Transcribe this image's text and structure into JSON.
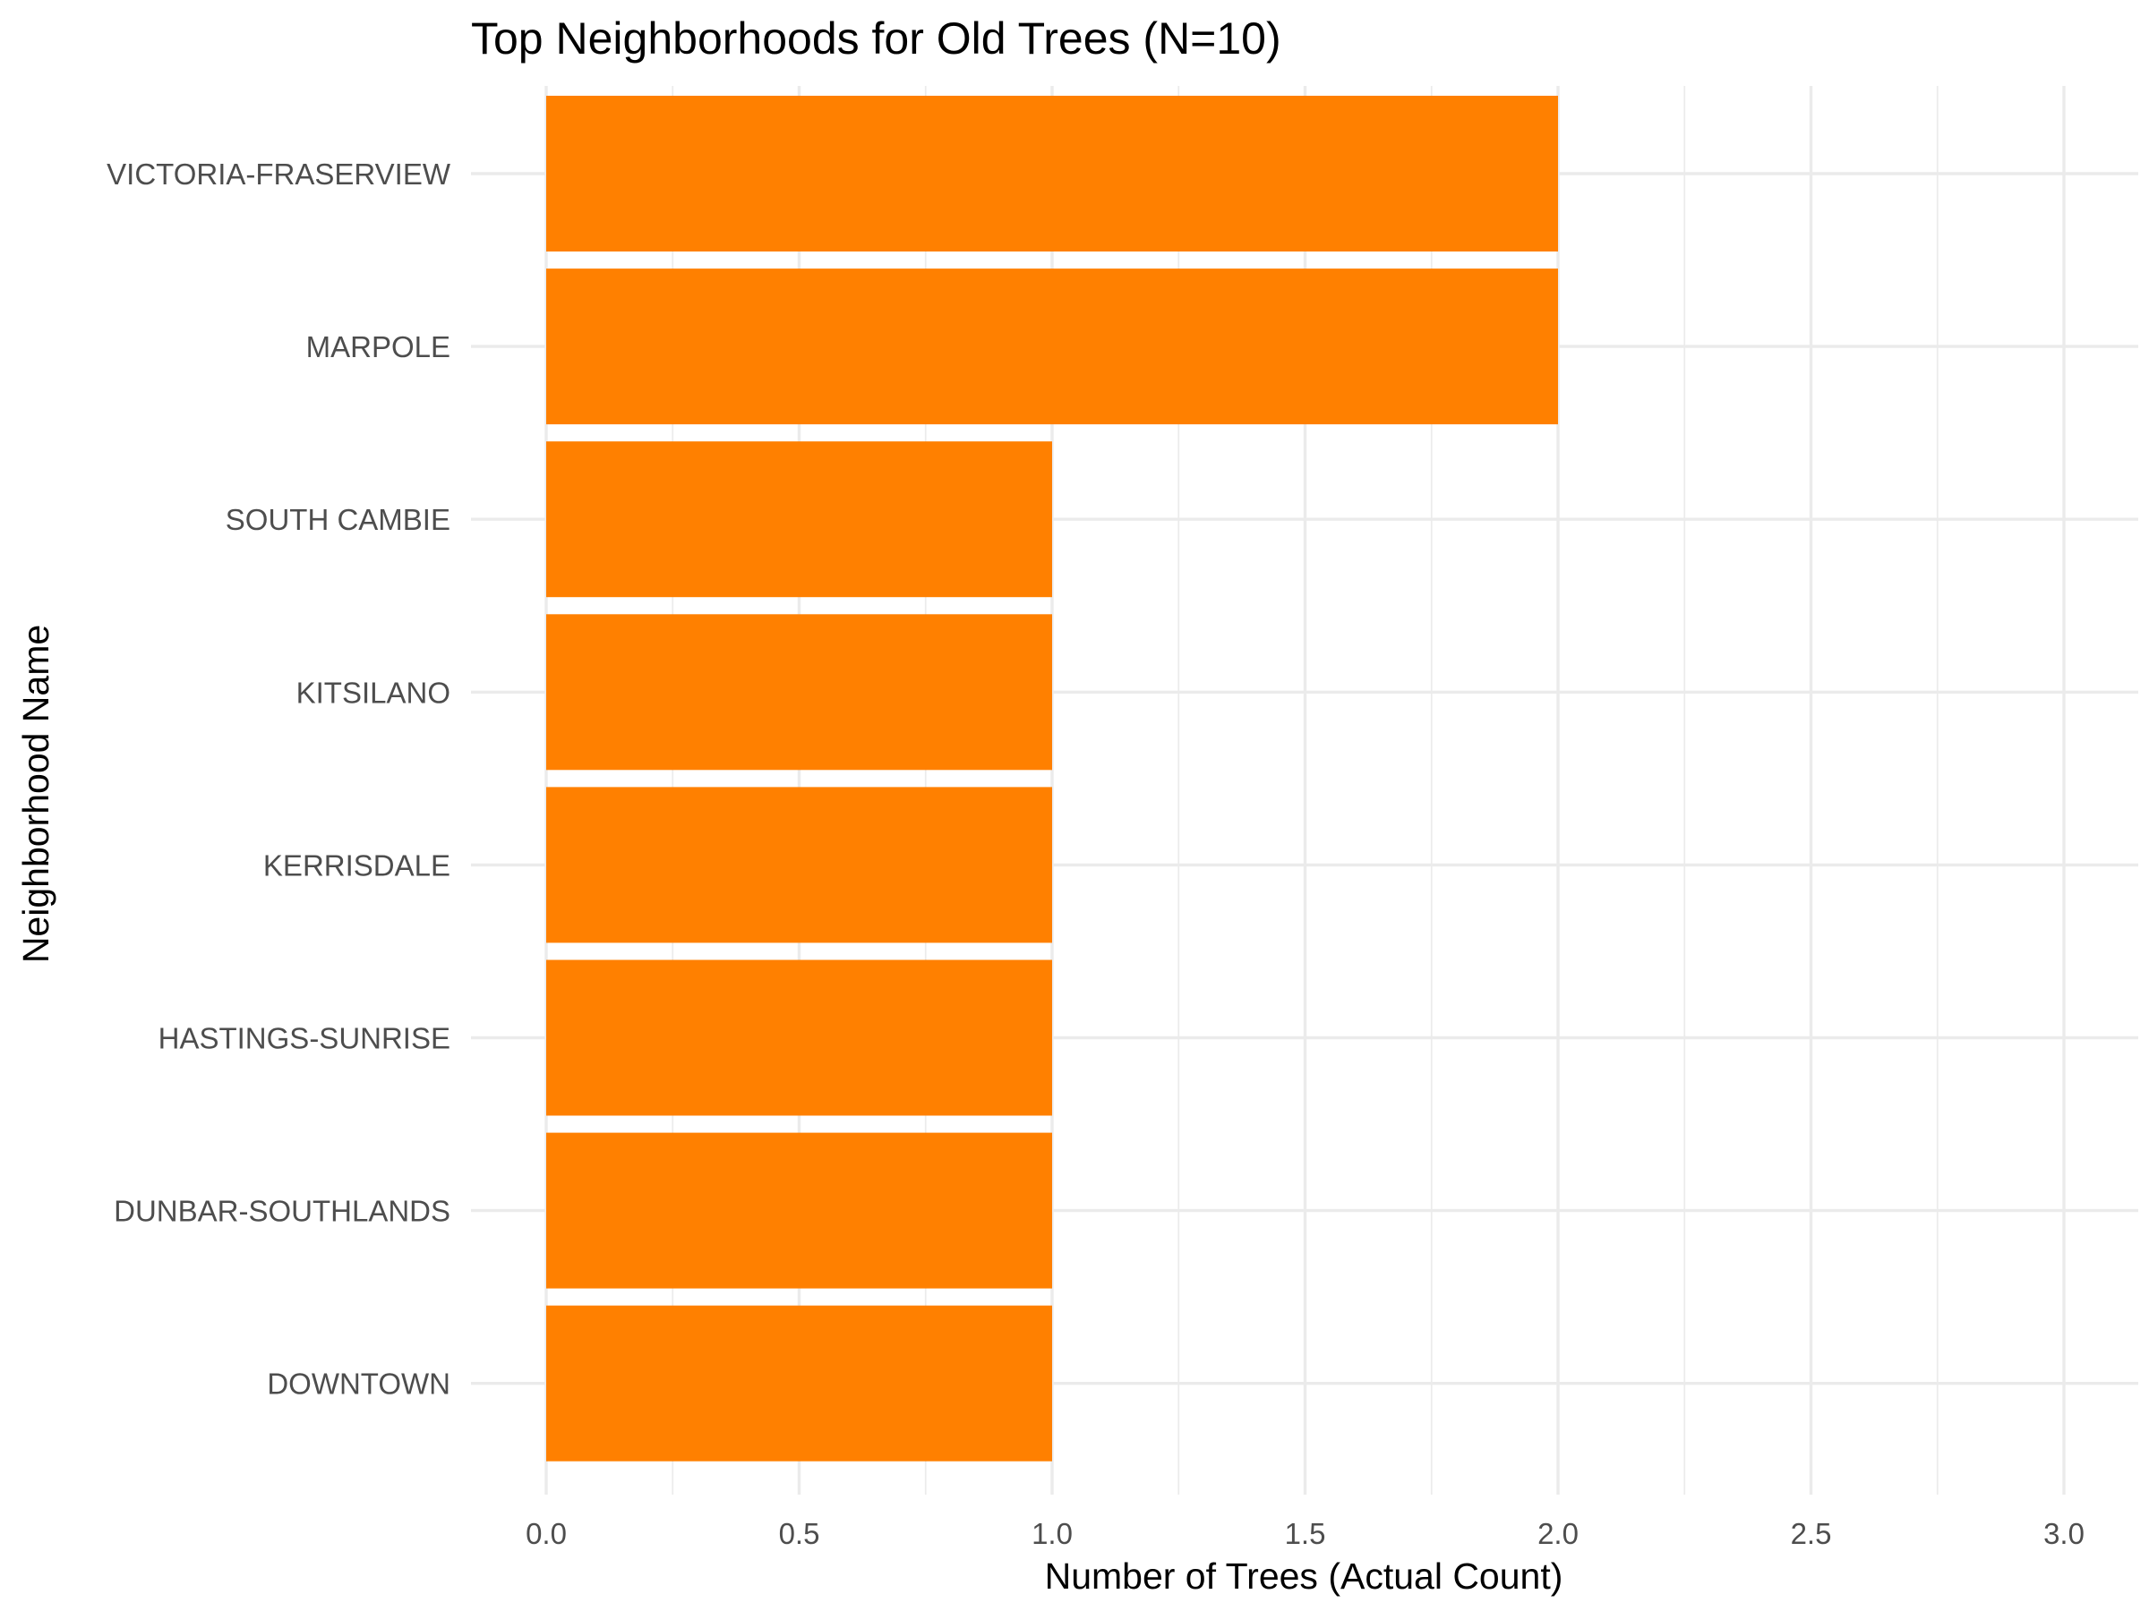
{
  "chart_data": {
    "type": "bar",
    "orientation": "horizontal",
    "title": "Top Neighborhoods for Old Trees (N=10)",
    "xlabel": "Number of Trees (Actual Count)",
    "ylabel": "Neighborhood Name",
    "categories": [
      "VICTORIA-FRASERVIEW",
      "MARPOLE",
      "SOUTH CAMBIE",
      "KITSILANO",
      "KERRISDALE",
      "HASTINGS-SUNRISE",
      "DUNBAR-SOUTHLANDS",
      "DOWNTOWN"
    ],
    "values": [
      2,
      2,
      1,
      1,
      1,
      1,
      1,
      1
    ],
    "xlim": [
      0,
      3
    ],
    "xticks": [
      "0.0",
      "0.5",
      "1.0",
      "1.5",
      "2.0",
      "2.5",
      "3.0"
    ],
    "grid": true,
    "bar_color": "#ff8000"
  }
}
